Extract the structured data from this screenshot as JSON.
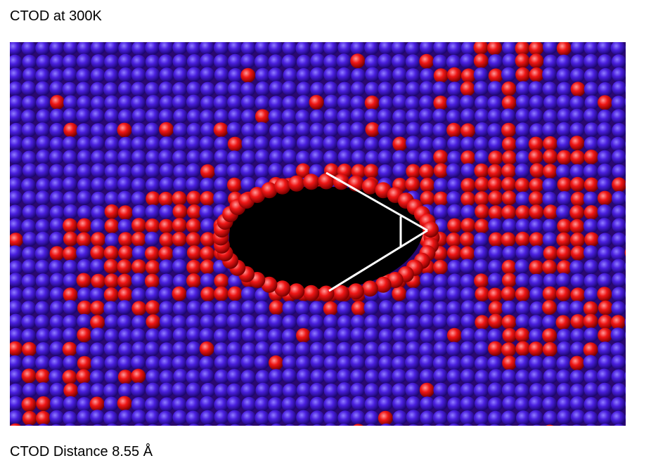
{
  "title": "CTOD at 300K",
  "caption": "CTOD Distance 8.55 Å",
  "colors": {
    "atom_bulk": "#4a1fe0",
    "atom_defect": "#f01818",
    "crack_void": "#000000",
    "ctod_lines": "#ffffff",
    "background": "#ffffff"
  }
}
